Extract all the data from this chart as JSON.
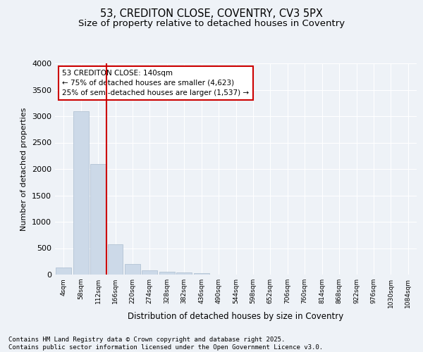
{
  "title_line1": "53, CREDITON CLOSE, COVENTRY, CV3 5PX",
  "title_line2": "Size of property relative to detached houses in Coventry",
  "xlabel": "Distribution of detached houses by size in Coventry",
  "ylabel": "Number of detached properties",
  "bar_color": "#ccd9e8",
  "bar_edge_color": "#aabcce",
  "vline_color": "#cc0000",
  "annotation_box_text": "53 CREDITON CLOSE: 140sqm\n← 75% of detached houses are smaller (4,623)\n25% of semi-detached houses are larger (1,537) →",
  "annotation_box_color": "#cc0000",
  "categories": [
    "4sqm",
    "58sqm",
    "112sqm",
    "166sqm",
    "220sqm",
    "274sqm",
    "328sqm",
    "382sqm",
    "436sqm",
    "490sqm",
    "544sqm",
    "598sqm",
    "652sqm",
    "706sqm",
    "760sqm",
    "814sqm",
    "868sqm",
    "922sqm",
    "976sqm",
    "1030sqm",
    "1084sqm"
  ],
  "bar_heights": [
    130,
    3090,
    2100,
    570,
    200,
    80,
    55,
    40,
    30,
    0,
    0,
    0,
    0,
    0,
    0,
    0,
    0,
    0,
    0,
    0,
    0
  ],
  "vline_pos": 2.5,
  "ylim": [
    0,
    4000
  ],
  "yticks": [
    0,
    500,
    1000,
    1500,
    2000,
    2500,
    3000,
    3500,
    4000
  ],
  "background_color": "#eef2f7",
  "plot_bg_color": "#eef2f7",
  "grid_color": "#ffffff",
  "footer_text": "Contains HM Land Registry data © Crown copyright and database right 2025.\nContains public sector information licensed under the Open Government Licence v3.0.",
  "title_fontsize": 10.5,
  "subtitle_fontsize": 9.5,
  "footer_fontsize": 6.5,
  "annotation_fontsize": 7.5
}
